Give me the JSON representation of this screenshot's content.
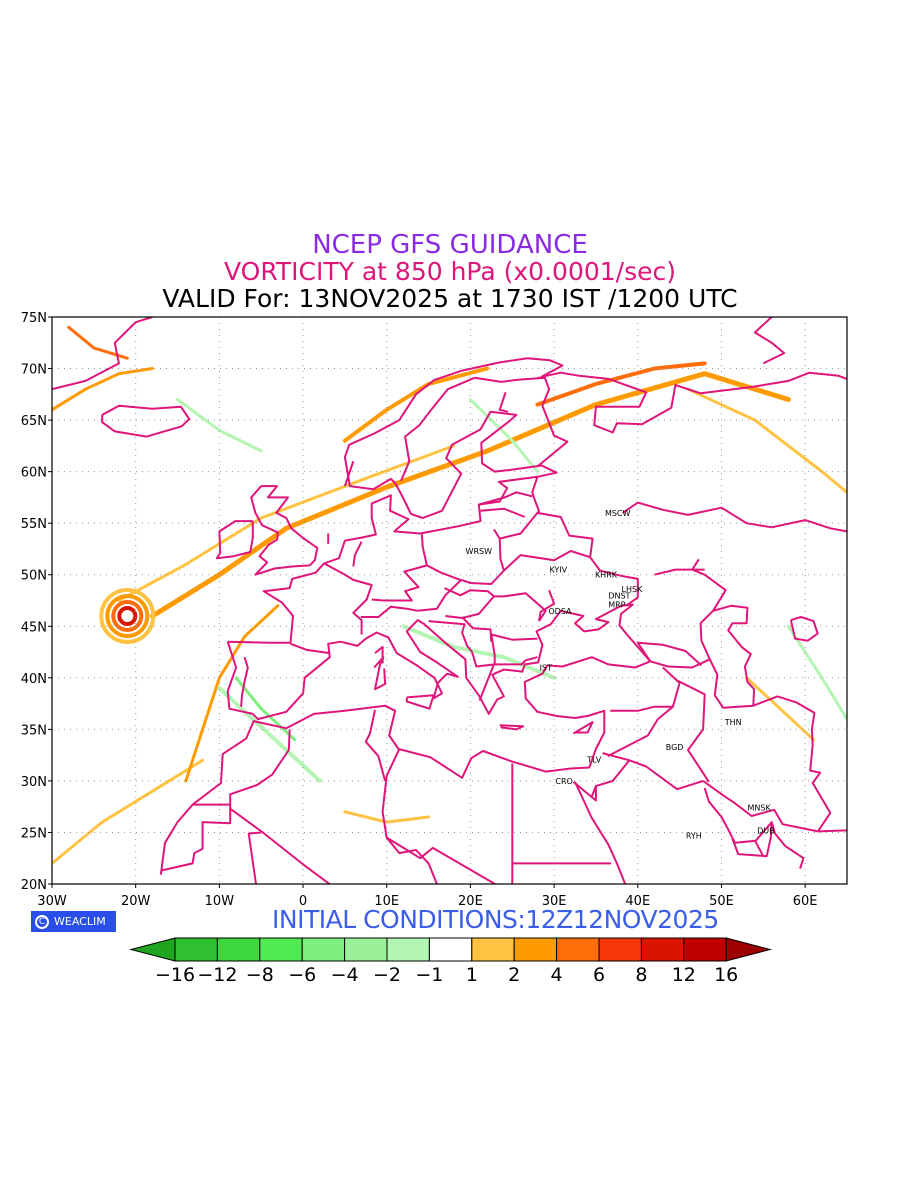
{
  "titles": {
    "line1": "NCEP GFS GUIDANCE",
    "line2": "VORTICITY at 850 hPa (x0.0001/sec)",
    "line3": "VALID For: 13NOV2025 at 1730 IST /1200 UTC"
  },
  "initial_conditions": "INITIAL CONDITIONS:12Z12NOV2025",
  "badge": {
    "logo_glyph": "C",
    "text": "WEACLIM"
  },
  "axes": {
    "lon_range": [
      -30,
      65
    ],
    "lat_range": [
      20,
      75
    ],
    "lon_ticks": [
      {
        "value": -30,
        "label": "30W"
      },
      {
        "value": -20,
        "label": "20W"
      },
      {
        "value": -10,
        "label": "10W"
      },
      {
        "value": 0,
        "label": "0"
      },
      {
        "value": 10,
        "label": "10E"
      },
      {
        "value": 20,
        "label": "20E"
      },
      {
        "value": 30,
        "label": "30E"
      },
      {
        "value": 40,
        "label": "40E"
      },
      {
        "value": 50,
        "label": "50E"
      },
      {
        "value": 60,
        "label": "60E"
      }
    ],
    "lat_ticks": [
      {
        "value": 20,
        "label": "20N"
      },
      {
        "value": 25,
        "label": "25N"
      },
      {
        "value": 30,
        "label": "30N"
      },
      {
        "value": 35,
        "label": "35N"
      },
      {
        "value": 40,
        "label": "40N"
      },
      {
        "value": 45,
        "label": "45N"
      },
      {
        "value": 50,
        "label": "50N"
      },
      {
        "value": 55,
        "label": "55N"
      },
      {
        "value": 60,
        "label": "60N"
      },
      {
        "value": 65,
        "label": "65N"
      },
      {
        "value": 70,
        "label": "70N"
      },
      {
        "value": 75,
        "label": "75N"
      }
    ],
    "grid": true
  },
  "cities": [
    {
      "label": "MSCW",
      "lon": 37.6,
      "lat": 56.0
    },
    {
      "label": "WRSW",
      "lon": 21.0,
      "lat": 52.3
    },
    {
      "label": "KYIV",
      "lon": 30.5,
      "lat": 50.5
    },
    {
      "label": "KHRK",
      "lon": 36.2,
      "lat": 50.0
    },
    {
      "label": "LHSK",
      "lon": 39.3,
      "lat": 48.6
    },
    {
      "label": "DNST",
      "lon": 37.8,
      "lat": 48.0
    },
    {
      "label": "MRP",
      "lon": 37.5,
      "lat": 47.1
    },
    {
      "label": "ODSA",
      "lon": 30.7,
      "lat": 46.5
    },
    {
      "label": "IST",
      "lon": 29.0,
      "lat": 41.0
    },
    {
      "label": "THN",
      "lon": 51.4,
      "lat": 35.7
    },
    {
      "label": "BGD",
      "lon": 44.4,
      "lat": 33.3
    },
    {
      "label": "TLV",
      "lon": 34.8,
      "lat": 32.1
    },
    {
      "label": "CRO",
      "lon": 31.2,
      "lat": 30.0
    },
    {
      "label": "MNSK",
      "lon": 54.5,
      "lat": 27.4
    },
    {
      "label": "DUB",
      "lon": 55.3,
      "lat": 25.2
    },
    {
      "label": "RYH",
      "lon": 46.7,
      "lat": 24.7
    }
  ],
  "colorbar": {
    "colors": [
      "#1fa51f",
      "#2fc02f",
      "#3dd63d",
      "#52ea52",
      "#7cef7c",
      "#9af19a",
      "#b3f5b3",
      "#ffffff",
      "#ffc242",
      "#ff9b00",
      "#ff6e0a",
      "#f5350a",
      "#db1400",
      "#c00000",
      "#9e0000"
    ],
    "labels": [
      "−16",
      "−12",
      "−8",
      "−6",
      "−4",
      "−2",
      "−1",
      "1",
      "2",
      "4",
      "6",
      "8",
      "12",
      "16"
    ]
  },
  "colors": {
    "boundary": "#e0157a",
    "grid": "#9a9a9a",
    "pos_light": "#ffc242",
    "pos_mid": "#ff9b00",
    "pos_strong": "#ff6e0a",
    "pos_max": "#db1400",
    "neg_light": "#b3f5b3",
    "neg_mid": "#7cef7c"
  },
  "vorticity_features": [
    {
      "kind": "jet",
      "color": "#ff9b00",
      "width": 5,
      "pts": [
        [
          -18,
          46
        ],
        [
          -10,
          50
        ],
        [
          -2,
          54.5
        ],
        [
          10,
          58.5
        ],
        [
          22,
          62
        ],
        [
          35,
          66.5
        ],
        [
          48,
          69.5
        ],
        [
          58,
          67
        ]
      ]
    },
    {
      "kind": "jet",
      "color": "#ffc242",
      "width": 3,
      "pts": [
        [
          -22,
          47.5
        ],
        [
          -14,
          51
        ],
        [
          -5,
          55.5
        ],
        [
          8,
          59.5
        ],
        [
          18,
          62.5
        ]
      ]
    },
    {
      "kind": "jet",
      "color": "#ff6e0a",
      "width": 4,
      "pts": [
        [
          28,
          66.5
        ],
        [
          35,
          68.5
        ],
        [
          42,
          70
        ],
        [
          48,
          70.5
        ]
      ]
    },
    {
      "kind": "jet",
      "color": "#ff9b00",
      "width": 4,
      "pts": [
        [
          5,
          63
        ],
        [
          10,
          66
        ],
        [
          15,
          68.5
        ],
        [
          22,
          70
        ]
      ]
    },
    {
      "kind": "jet",
      "color": "#ffc242",
      "width": 3,
      "pts": [
        [
          46,
          68
        ],
        [
          54,
          65
        ],
        [
          62,
          60
        ],
        [
          65,
          58
        ]
      ]
    },
    {
      "kind": "jet",
      "color": "#ff9b00",
      "width": 3,
      "pts": [
        [
          -30,
          66
        ],
        [
          -26,
          68
        ],
        [
          -22,
          69.5
        ],
        [
          -18,
          70
        ]
      ]
    },
    {
      "kind": "jet",
      "color": "#ff6e0a",
      "width": 3,
      "pts": [
        [
          -28,
          74
        ],
        [
          -25,
          72
        ],
        [
          -21,
          71
        ]
      ]
    },
    {
      "kind": "jet",
      "color": "#ffc242",
      "width": 3,
      "pts": [
        [
          -30,
          22
        ],
        [
          -24,
          26
        ],
        [
          -18,
          29
        ],
        [
          -12,
          32
        ]
      ]
    },
    {
      "kind": "jet",
      "color": "#ff9b00",
      "width": 3,
      "pts": [
        [
          -14,
          30
        ],
        [
          -12,
          35
        ],
        [
          -10,
          40
        ],
        [
          -7,
          44
        ],
        [
          -3,
          47
        ]
      ]
    },
    {
      "kind": "jet",
      "color": "#b3f5b3",
      "width": 4,
      "pts": [
        [
          -10,
          39
        ],
        [
          -6,
          36
        ],
        [
          -2,
          33
        ],
        [
          2,
          30
        ]
      ]
    },
    {
      "kind": "jet",
      "color": "#7cef7c",
      "width": 3,
      "pts": [
        [
          -8,
          40
        ],
        [
          -5,
          37
        ],
        [
          -1,
          34
        ]
      ]
    },
    {
      "kind": "jet",
      "color": "#b3f5b3",
      "width": 4,
      "pts": [
        [
          12,
          45
        ],
        [
          18,
          43
        ],
        [
          24,
          42
        ],
        [
          30,
          40
        ]
      ]
    },
    {
      "kind": "jet",
      "color": "#b3f5b3",
      "width": 3,
      "pts": [
        [
          20,
          67
        ],
        [
          25,
          63
        ],
        [
          28,
          60
        ]
      ]
    },
    {
      "kind": "jet",
      "color": "#b3f5b3",
      "width": 3,
      "pts": [
        [
          -15,
          67
        ],
        [
          -10,
          64
        ],
        [
          -5,
          62
        ]
      ]
    },
    {
      "kind": "jet",
      "color": "#b3f5b3",
      "width": 3,
      "pts": [
        [
          58,
          45
        ],
        [
          62,
          40
        ],
        [
          65,
          36
        ]
      ]
    },
    {
      "kind": "jet",
      "color": "#ffc242",
      "width": 3,
      "pts": [
        [
          5,
          27
        ],
        [
          10,
          26
        ],
        [
          15,
          26.5
        ]
      ]
    },
    {
      "kind": "jet",
      "color": "#ffc242",
      "width": 3,
      "pts": [
        [
          53,
          40
        ],
        [
          57,
          37
        ],
        [
          61,
          34
        ]
      ]
    }
  ],
  "cyclone": {
    "lon": -21,
    "lat": 46,
    "rings": [
      "#ffc242",
      "#ff9b00",
      "#ff6e0a",
      "#db1400"
    ]
  }
}
